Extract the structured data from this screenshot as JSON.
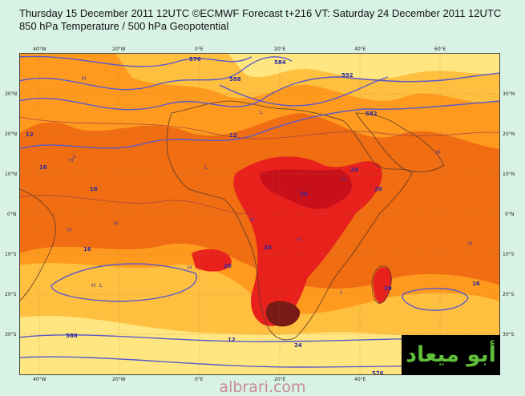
{
  "header": {
    "line1": "Thursday 15 December 2011 12UTC ©ECMWF Forecast t+216 VT: Saturday 24 December 2011 12UTC",
    "line2": "850 hPa Temperature / 500 hPa Geopotential"
  },
  "axes": {
    "lon_labels": [
      "40°W",
      "20°W",
      "0°E",
      "20°E",
      "40°E",
      "60°E"
    ],
    "lat_labels": [
      "30°N",
      "20°N",
      "10°N",
      "0°N",
      "10°S",
      "20°S",
      "30°S"
    ]
  },
  "contour_labels": [
    "576",
    "584",
    "588",
    "592",
    "582",
    "12",
    "12",
    "16",
    "16",
    "16",
    "20",
    "20",
    "20",
    "24",
    "24",
    "24",
    "20",
    "12",
    "16",
    "576",
    "588"
  ],
  "pressure_markers": [
    "H",
    "H",
    "H",
    "H",
    "H",
    "H",
    "H",
    "H",
    "H",
    "L",
    "L",
    "L",
    "L",
    "H",
    "L",
    "H"
  ],
  "colors": {
    "cold": "#ffe680",
    "cool": "#ffbf3f",
    "mild": "#ff9a1e",
    "warm": "#f06d12",
    "hot": "#e8211c",
    "hotter": "#c8101a",
    "hottest": "#7a1a16",
    "contour": "#5a5ac8"
  },
  "logo": {
    "text": "أبو ميعاد"
  },
  "footer": {
    "text": "albrari.com"
  }
}
